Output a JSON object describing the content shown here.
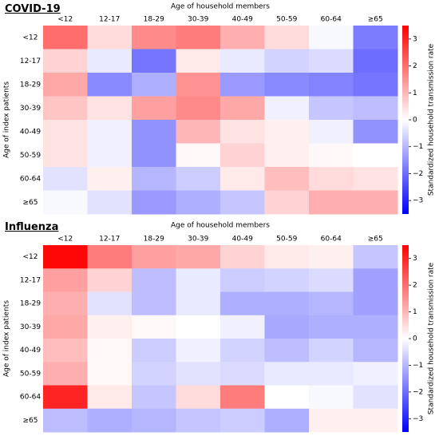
{
  "panels": [
    {
      "title": "COVID-19"
    },
    {
      "title": "Influenza"
    }
  ],
  "chart_data": [
    {
      "type": "heatmap",
      "title": "COVID-19",
      "xlabel": "Age of household members",
      "ylabel": "Age of index patients",
      "colorbar_label": "Standardized household transmission rate",
      "x_categories": [
        "<12",
        "12-17",
        "18-29",
        "30-39",
        "40-49",
        "50-59",
        "60-64",
        "≥65"
      ],
      "y_categories": [
        "<12",
        "12-17",
        "18-29",
        "30-39",
        "40-49",
        "50-59",
        "60-64",
        "≥65"
      ],
      "zlim": [
        -3.5,
        3.5
      ],
      "colorbar_ticks": [
        -3,
        -2,
        -1,
        0,
        1,
        2,
        3
      ],
      "values": [
        [
          2.0,
          0.5,
          1.6,
          1.8,
          1.1,
          0.5,
          -0.1,
          -1.8
        ],
        [
          0.6,
          -0.3,
          -1.9,
          0.3,
          -0.3,
          -0.6,
          -0.5,
          -2.0
        ],
        [
          1.2,
          -1.6,
          -1.1,
          1.5,
          -1.4,
          -1.6,
          -1.7,
          -1.9
        ],
        [
          0.8,
          0.4,
          1.3,
          1.6,
          1.2,
          -0.2,
          -0.8,
          -0.9
        ],
        [
          0.4,
          -0.2,
          -1.5,
          1.0,
          0.4,
          0.2,
          -0.2,
          -1.5
        ],
        [
          0.4,
          -0.2,
          -1.5,
          0.1,
          0.6,
          0.2,
          0.1,
          0.0
        ],
        [
          -0.4,
          0.2,
          -1.0,
          -0.7,
          0.3,
          0.9,
          0.5,
          0.4
        ],
        [
          -0.1,
          -0.4,
          -1.4,
          -1.1,
          -0.8,
          0.6,
          1.1,
          1.1
        ]
      ]
    },
    {
      "type": "heatmap",
      "title": "Influenza",
      "xlabel": "Age of household members",
      "ylabel": "Age of index patients",
      "colorbar_label": "Standardized household transmission rate",
      "x_categories": [
        "<12",
        "12-17",
        "18-29",
        "30-39",
        "40-49",
        "50-59",
        "60-64",
        "≥65"
      ],
      "y_categories": [
        "<12",
        "12-17",
        "18-29",
        "30-39",
        "40-49",
        "50-59",
        "60-64",
        "≥65"
      ],
      "zlim": [
        -3.5,
        3.5
      ],
      "colorbar_ticks": [
        -3,
        -2,
        -1,
        0,
        1,
        2,
        3
      ],
      "values": [
        [
          3.4,
          1.8,
          1.3,
          1.2,
          0.6,
          0.3,
          0.2,
          -0.8
        ],
        [
          1.3,
          0.6,
          -0.9,
          -0.3,
          -0.7,
          -0.6,
          -0.5,
          -1.3
        ],
        [
          1.1,
          -0.4,
          -0.9,
          -0.3,
          -1.1,
          -1.1,
          -1.0,
          -1.3
        ],
        [
          1.2,
          0.2,
          0.1,
          0.0,
          -0.2,
          -1.2,
          -1.1,
          -1.1
        ],
        [
          0.9,
          0.1,
          -0.7,
          -0.2,
          -0.6,
          -0.9,
          -0.6,
          -1.0
        ],
        [
          1.1,
          0.1,
          -0.6,
          -0.4,
          -0.5,
          -0.3,
          -0.3,
          -0.2
        ],
        [
          3.0,
          0.3,
          -0.8,
          0.5,
          1.8,
          0.0,
          -0.1,
          -0.4
        ],
        [
          -0.9,
          -1.1,
          -1.0,
          -0.8,
          -0.7,
          -1.1,
          0.2,
          0.2
        ]
      ]
    }
  ]
}
